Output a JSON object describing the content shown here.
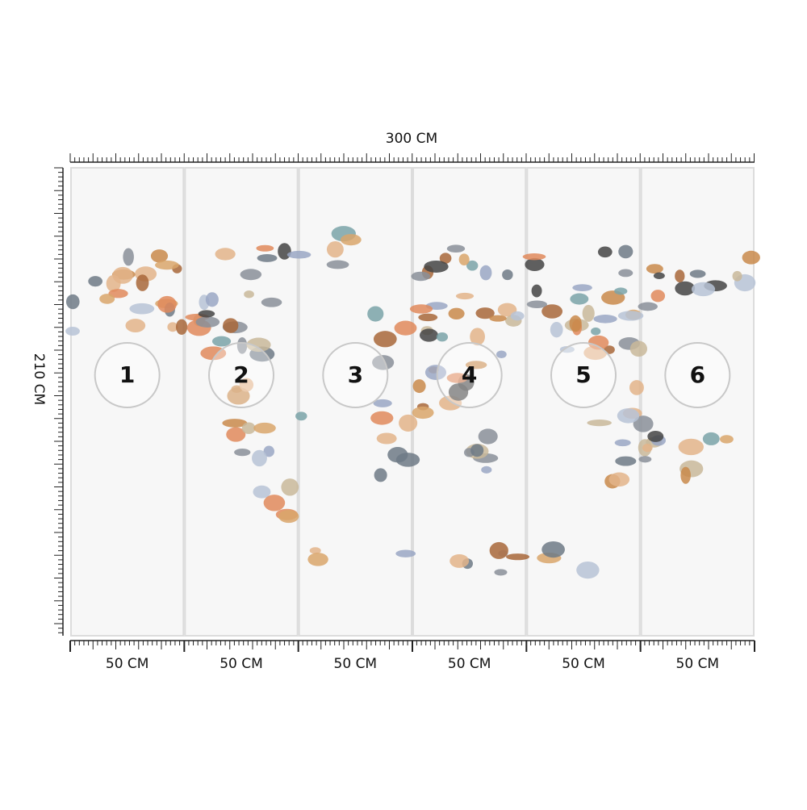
{
  "dimensions": {
    "width_label": "300 CM",
    "height_label": "210 CM"
  },
  "panels": [
    {
      "number": "1",
      "width_label": "50 CM"
    },
    {
      "number": "2",
      "width_label": "50 CM"
    },
    {
      "number": "3",
      "width_label": "50 CM"
    },
    {
      "number": "4",
      "width_label": "50 CM"
    },
    {
      "number": "5",
      "width_label": "50 CM"
    },
    {
      "number": "6",
      "width_label": "50 CM"
    }
  ]
}
